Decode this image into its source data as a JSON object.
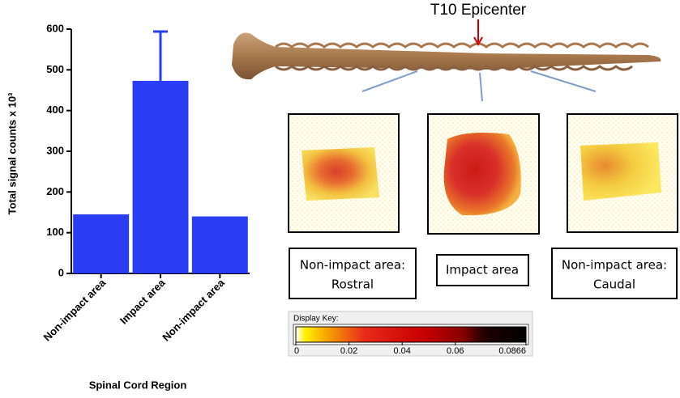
{
  "chart_data": {
    "type": "bar",
    "categories": [
      "Non-impact area",
      "Impact area",
      "Non-impact area"
    ],
    "values": [
      145,
      473,
      140
    ],
    "errors": [
      null,
      121,
      null
    ],
    "color": "#2b3cf5",
    "ylim": [
      0,
      600
    ],
    "yticks": [
      0,
      100,
      200,
      300,
      400,
      500,
      600
    ],
    "y_label": "Total signal counts x 10³",
    "x_label": "Spinal Cord Region"
  },
  "figure": {
    "epicenter": "T10 Epicenter",
    "panels": [
      {
        "label": [
          "Non-impact area:",
          "Rostral"
        ]
      },
      {
        "label": [
          "Impact area"
        ]
      },
      {
        "label": [
          "Non-impact area:",
          "Caudal"
        ]
      }
    ],
    "color_key": {
      "title": "Display Key:",
      "lim": [
        0,
        0.0866
      ],
      "ticks": [
        0,
        0.02,
        0.04,
        0.06,
        0.0866
      ]
    }
  }
}
